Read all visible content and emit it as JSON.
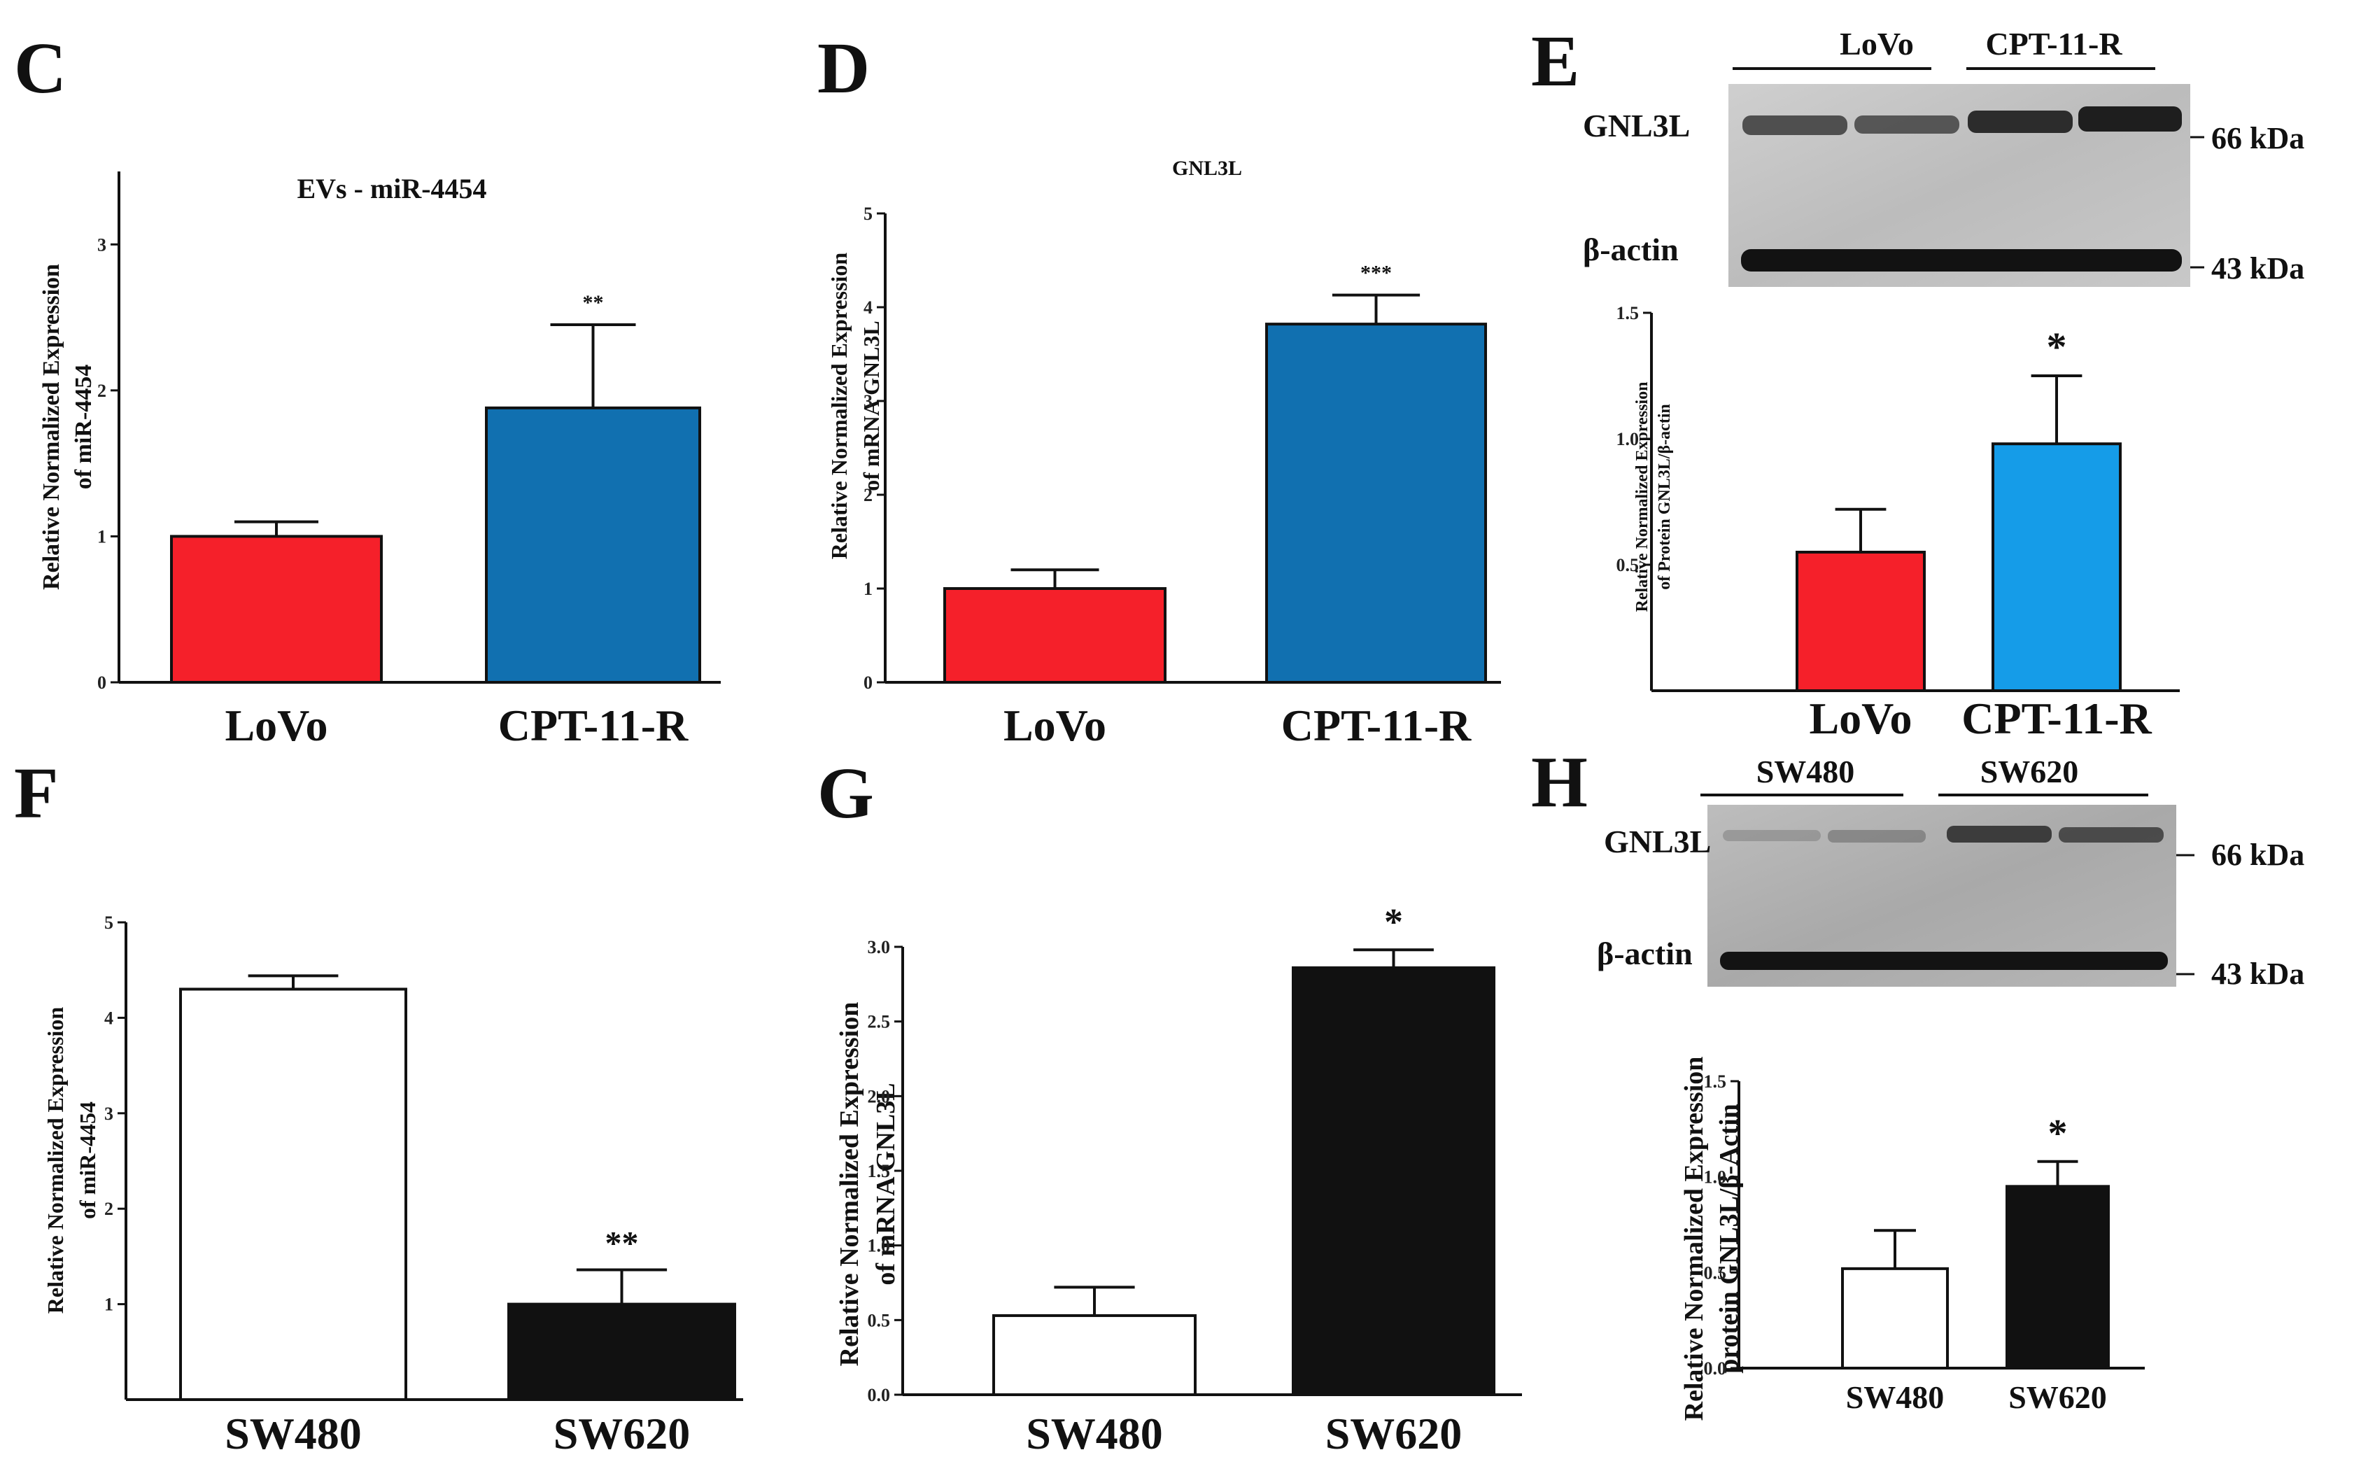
{
  "figure": {
    "panels": {
      "C": {
        "letter": "C"
      },
      "D": {
        "letter": "D"
      },
      "E": {
        "letter": "E",
        "lanes": [
          "LoVo",
          "CPT-11-R"
        ],
        "bands": [
          "GNL3L",
          "β-actin"
        ],
        "markers": [
          "66 kDa",
          "43 kDa"
        ]
      },
      "F": {
        "letter": "F"
      },
      "G": {
        "letter": "G"
      },
      "H": {
        "letter": "H",
        "lanes": [
          "SW480",
          "SW620"
        ],
        "bands": [
          "GNL3L",
          "β-actin"
        ],
        "markers": [
          "66 kDa",
          "43 kDa"
        ]
      }
    }
  },
  "chart_data": [
    {
      "id": "C",
      "type": "bar",
      "title": "EVs - miR-4454",
      "ylabel": [
        "Relative Normalized Expression",
        "of miR-4454"
      ],
      "categories": [
        "LoVo",
        "CPT-11-R"
      ],
      "values": [
        1.0,
        1.88
      ],
      "errors": [
        0.1,
        0.57
      ],
      "colors": [
        "#f5202a",
        "#1170b0"
      ],
      "ylim": [
        0,
        3.5
      ],
      "yticks": [
        "0",
        "1",
        "2",
        "3"
      ],
      "significance": [
        "",
        "**"
      ]
    },
    {
      "id": "D",
      "type": "bar",
      "title": "GNL3L",
      "ylabel": [
        "Relative Normalized Expression",
        "of mRNA GNL3L"
      ],
      "categories": [
        "LoVo",
        "CPT-11-R"
      ],
      "values": [
        1.0,
        3.82
      ],
      "errors": [
        0.2,
        0.31
      ],
      "colors": [
        "#f5202a",
        "#1170b0"
      ],
      "ylim": [
        0,
        5
      ],
      "yticks": [
        "0",
        "1",
        "2",
        "3",
        "4",
        "5"
      ],
      "significance": [
        "",
        "***"
      ]
    },
    {
      "id": "E",
      "type": "bar",
      "title": "",
      "ylabel": [
        "Relative Normalized Expression",
        "of Protein GNL3L/β-actin"
      ],
      "categories": [
        "LoVo",
        "CPT-11-R"
      ],
      "values": [
        0.55,
        0.98
      ],
      "errors": [
        0.17,
        0.27
      ],
      "colors": [
        "#f5202a",
        "#159ce8"
      ],
      "ylim": [
        0,
        1.5
      ],
      "yticks": [
        "0.5",
        "1.0",
        "1.5"
      ],
      "significance": [
        "",
        "*"
      ]
    },
    {
      "id": "F",
      "type": "bar",
      "title": "",
      "ylabel": [
        "Relative Normalized Expression",
        "of miR-4454"
      ],
      "categories": [
        "SW480",
        "SW620"
      ],
      "values": [
        4.3,
        1.0
      ],
      "errors": [
        0.14,
        0.36
      ],
      "colors": [
        "#ffffff",
        "#111111"
      ],
      "ylim": [
        0,
        5
      ],
      "yticks": [
        "1",
        "2",
        "3",
        "4",
        "5"
      ],
      "significance": [
        "",
        "**"
      ]
    },
    {
      "id": "G",
      "type": "bar",
      "title": "",
      "ylabel": [
        "Relative Normalized Expression",
        "of mRNA GNL3L"
      ],
      "categories": [
        "SW480",
        "SW620"
      ],
      "values": [
        0.53,
        2.86
      ],
      "errors": [
        0.19,
        0.12
      ],
      "colors": [
        "#ffffff",
        "#111111"
      ],
      "ylim": [
        0,
        3.0
      ],
      "yticks": [
        "0.0",
        "0.5",
        "1.0",
        "1.5",
        "2.0",
        "2.5",
        "3.0"
      ],
      "significance": [
        "",
        "*"
      ]
    },
    {
      "id": "H",
      "type": "bar",
      "title": "",
      "ylabel": [
        "Relative Normalized Expression",
        "protein GNL3L/β-Actin"
      ],
      "categories": [
        "SW480",
        "SW620"
      ],
      "values": [
        0.52,
        0.95
      ],
      "errors": [
        0.2,
        0.13
      ],
      "colors": [
        "#ffffff",
        "#111111"
      ],
      "ylim": [
        0,
        1.5
      ],
      "yticks": [
        "0.0",
        "0.5",
        "1.0",
        "1.5"
      ],
      "significance": [
        "",
        "*"
      ]
    }
  ]
}
